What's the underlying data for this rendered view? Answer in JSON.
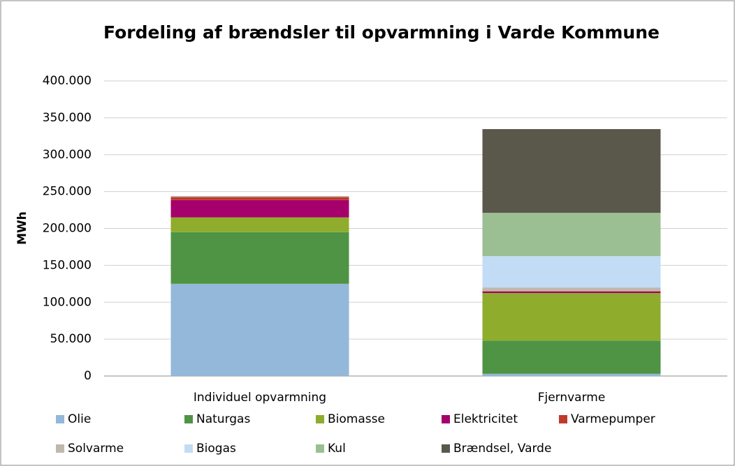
{
  "chart_data": {
    "type": "stacked_bar",
    "title": "Fordeling af brændsler til opvarmning i Varde Kommune",
    "y_label": "MWh",
    "categories": [
      "Individuel opvarmning",
      "Fjernvarme"
    ],
    "series": [
      {
        "name": "Olie",
        "color": "#93b8d9",
        "values": [
          125000,
          3000
        ]
      },
      {
        "name": "Naturgas",
        "color": "#4e9444",
        "values": [
          70000,
          45000
        ]
      },
      {
        "name": "Biomasse",
        "color": "#8fac2d",
        "values": [
          20000,
          64500
        ]
      },
      {
        "name": "Elektricitet",
        "color": "#a5006b",
        "values": [
          23500,
          2000
        ]
      },
      {
        "name": "Varmepumper",
        "color": "#c0392b",
        "values": [
          4000,
          500
        ]
      },
      {
        "name": "Solvarme",
        "color": "#bfb8ae",
        "values": [
          1500,
          5000
        ]
      },
      {
        "name": "Biogas",
        "color": "#c2dcf5",
        "values": [
          0,
          42500
        ]
      },
      {
        "name": "Kul",
        "color": "#9bbf93",
        "values": [
          0,
          58700
        ]
      },
      {
        "name": "Brændsel, Varde",
        "color": "#5a574b",
        "values": [
          0,
          113500
        ]
      }
    ],
    "ylim": [
      0,
      400000
    ],
    "yticks": [
      0,
      {
        "value": 50000,
        "label": "50.000"
      },
      {
        "value": 100000,
        "label": "100.000"
      },
      {
        "value": 150000,
        "label": "150.000"
      },
      {
        "value": 200000,
        "label": "200.000"
      },
      {
        "value": 250000,
        "label": "250.000"
      },
      {
        "value": 300000,
        "label": "300.000"
      },
      {
        "value": 350000,
        "label": "350.000"
      },
      {
        "value": 400000,
        "label": "400.000"
      }
    ],
    "grid": true
  }
}
